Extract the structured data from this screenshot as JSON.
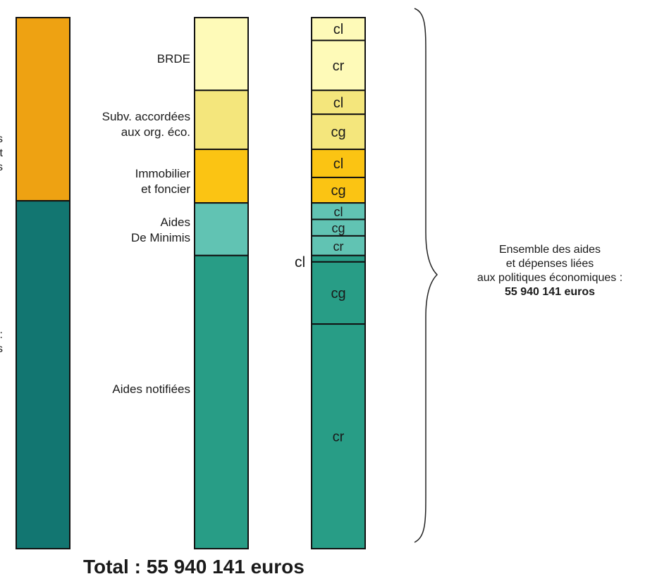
{
  "chart_data": {
    "type": "bar",
    "stacked": true,
    "unit_hint": "share of total (fraction)",
    "total_label": "Total : 55 940 141 euros",
    "columns": [
      {
        "name": "",
        "segments": [
          {
            "value": 0.345,
            "color": "#eea212"
          },
          {
            "value": 0.655,
            "color": "#127671"
          }
        ]
      },
      {
        "name": "",
        "segments": [
          {
            "label": "BRDE",
            "value": 0.137,
            "color": "#fefab8"
          },
          {
            "label": "Subv. accordées aux org. éco.",
            "value": 0.111,
            "color": "#f4e67c"
          },
          {
            "label": "Immobilier et foncier",
            "value": 0.101,
            "color": "#fbc413"
          },
          {
            "label": "Aides De Minimis",
            "value": 0.099,
            "color": "#61c3b3"
          },
          {
            "label": "Aides notifiées",
            "value": 0.552,
            "color": "#289d86"
          }
        ]
      },
      {
        "name": "",
        "segments": [
          {
            "label": "cl",
            "value": 0.043,
            "color": "#fefab8"
          },
          {
            "label": "cr",
            "value": 0.094,
            "color": "#fefab8"
          },
          {
            "label": "cl",
            "value": 0.045,
            "color": "#f4e67c"
          },
          {
            "label": "cg",
            "value": 0.066,
            "color": "#f4e67c"
          },
          {
            "label": "cl",
            "value": 0.053,
            "color": "#fbc413"
          },
          {
            "label": "cg",
            "value": 0.048,
            "color": "#fbc413"
          },
          {
            "label": "cl",
            "value": 0.031,
            "color": "#61c3b3"
          },
          {
            "label": "cg",
            "value": 0.031,
            "color": "#61c3b3"
          },
          {
            "label": "cr",
            "value": 0.037,
            "color": "#61c3b3"
          },
          {
            "label": "",
            "value": 0.012,
            "color": "#289d86"
          },
          {
            "label": "cg",
            "value": 0.117,
            "color": "#289d86"
          },
          {
            "label": "cr",
            "value": 0.423,
            "color": "#289d86"
          }
        ]
      }
    ]
  },
  "labels": {
    "left_top_fragments": [
      "s",
      "t",
      "s"
    ],
    "left_bottom_fragments": [
      ":",
      "s"
    ],
    "brde": "BRDE",
    "subv_line1": "Subv. accordées",
    "subv_line2": "aux org. éco.",
    "immo_line1": "Immobilier",
    "immo_line2": "et foncier",
    "minimis_line1": "Aides",
    "minimis_line2": "De Minimis",
    "notifiees": "Aides notifiées",
    "cl_outside": "cl"
  },
  "note": {
    "line1": "Ensemble des aides",
    "line2": "et dépenses liées",
    "line3": "aux politiques économiques :",
    "total": "55 940 141 euros"
  },
  "total": "Total : 55 940 141 euros"
}
